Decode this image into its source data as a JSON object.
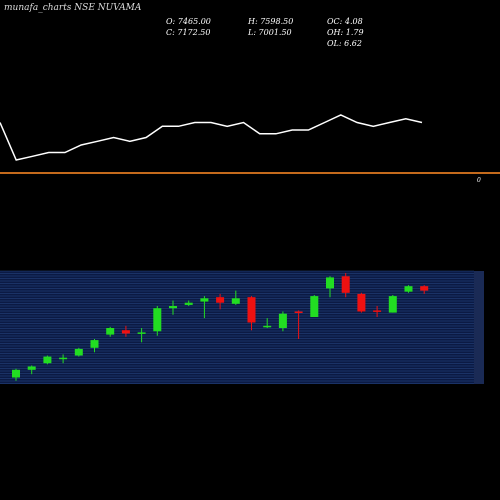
{
  "header": {
    "title": "munafa_charts NSE NUVAMA",
    "open": "O: 7465.00",
    "high": "H: 7598.50",
    "oc": "OC: 4.08",
    "close": "C: 7172.50",
    "low": "L: 7001.50",
    "oh": "OH: 1.79",
    "ol": "OL: 6.62"
  },
  "divider_label": "0",
  "colors": {
    "background": "#000000",
    "line": "#ffffff",
    "divider": "#c46a1c",
    "up": "#22dd22",
    "down": "#ee1111",
    "grid_panel": "#0b1a44",
    "grid_line": "#2a4a88"
  },
  "chart_data": [
    {
      "type": "line",
      "values": [
        140,
        130,
        131,
        132,
        132,
        134,
        135,
        136,
        135,
        136,
        139,
        139,
        140,
        140,
        139,
        140,
        137,
        137,
        138,
        138,
        140,
        142,
        140,
        139,
        140,
        141,
        140
      ]
    },
    {
      "type": "candlestick",
      "ylim": [
        0,
        100
      ],
      "candles": [
        {
          "o": 5,
          "h": 13,
          "l": 2,
          "c": 12
        },
        {
          "o": 12,
          "h": 16,
          "l": 8,
          "c": 15
        },
        {
          "o": 18,
          "h": 25,
          "l": 17,
          "c": 24
        },
        {
          "o": 23,
          "h": 26,
          "l": 18,
          "c": 23
        },
        {
          "o": 25,
          "h": 32,
          "l": 24,
          "c": 31
        },
        {
          "o": 32,
          "h": 40,
          "l": 28,
          "c": 39
        },
        {
          "o": 44,
          "h": 51,
          "l": 42,
          "c": 50
        },
        {
          "o": 48,
          "h": 52,
          "l": 42,
          "c": 45
        },
        {
          "o": 46,
          "h": 50,
          "l": 37,
          "c": 46
        },
        {
          "o": 47,
          "h": 70,
          "l": 43,
          "c": 68
        },
        {
          "o": 68,
          "h": 75,
          "l": 62,
          "c": 70
        },
        {
          "o": 71,
          "h": 75,
          "l": 70,
          "c": 73
        },
        {
          "o": 74,
          "h": 79,
          "l": 59,
          "c": 77
        },
        {
          "o": 78,
          "h": 81,
          "l": 67,
          "c": 73
        },
        {
          "o": 72,
          "h": 84,
          "l": 71,
          "c": 77
        },
        {
          "o": 78,
          "h": 79,
          "l": 48,
          "c": 55
        },
        {
          "o": 52,
          "h": 59,
          "l": 50,
          "c": 52
        },
        {
          "o": 50,
          "h": 65,
          "l": 47,
          "c": 63
        },
        {
          "o": 65,
          "h": 66,
          "l": 40,
          "c": 64
        },
        {
          "o": 60,
          "h": 80,
          "l": 60,
          "c": 79
        },
        {
          "o": 86,
          "h": 97,
          "l": 78,
          "c": 96
        },
        {
          "o": 97,
          "h": 100,
          "l": 78,
          "c": 82
        },
        {
          "o": 81,
          "h": 82,
          "l": 64,
          "c": 65
        },
        {
          "o": 66,
          "h": 70,
          "l": 60,
          "c": 65
        },
        {
          "o": 64,
          "h": 80,
          "l": 64,
          "c": 79
        },
        {
          "o": 83,
          "h": 89,
          "l": 82,
          "c": 88
        },
        {
          "o": 88,
          "h": 89,
          "l": 81,
          "c": 84
        }
      ]
    }
  ]
}
